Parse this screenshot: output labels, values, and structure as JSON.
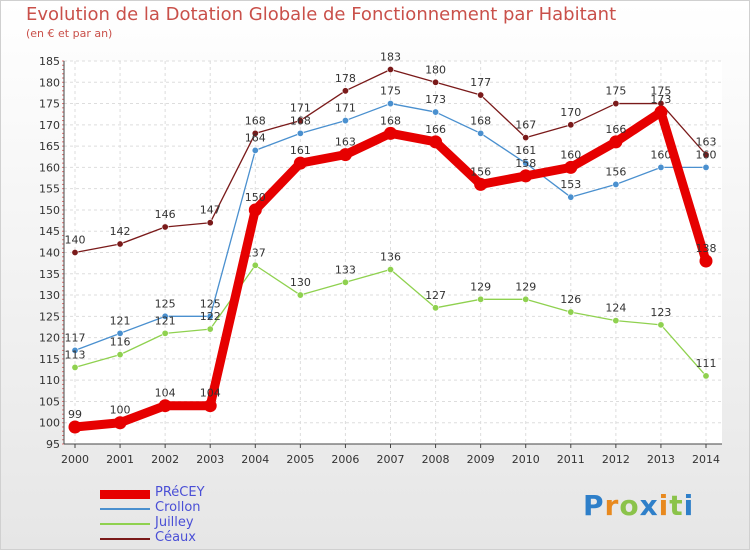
{
  "title": "Evolution de la Dotation Globale de Fonctionnement par Habitant",
  "subtitle": "(en € et par an)",
  "brand": {
    "letters": [
      "P",
      "r",
      "o",
      "x",
      "i",
      "t",
      "i"
    ],
    "colors": [
      "#2e7fc9",
      "#e8891e",
      "#8bc34a",
      "#2e7fc9",
      "#e8891e",
      "#8bc34a",
      "#2e7fc9"
    ]
  },
  "chart_data": {
    "type": "line",
    "title": "Evolution de la Dotation Globale de Fonctionnement par Habitant",
    "ylabel": "(en € et par an)",
    "xlabel": "",
    "x": [
      "2000",
      "2001",
      "2002",
      "2003",
      "2004",
      "2005",
      "2006",
      "2007",
      "2008",
      "2009",
      "2010",
      "2011",
      "2012",
      "2013",
      "2014"
    ],
    "ylim": [
      95,
      185
    ],
    "yticks": [
      95,
      100,
      105,
      110,
      115,
      120,
      125,
      130,
      135,
      140,
      145,
      150,
      155,
      160,
      165,
      170,
      175,
      180,
      185
    ],
    "grid": true,
    "legend": "bottom-left",
    "series": [
      {
        "name": "Céaux",
        "color": "#7a1a1a",
        "values": [
          140,
          142,
          146,
          147,
          168,
          171,
          178,
          183,
          180,
          177,
          167,
          170,
          175,
          175,
          163
        ]
      },
      {
        "name": "Crollon",
        "color": "#4a90cf",
        "values": [
          117,
          121,
          125,
          125,
          164,
          168,
          171,
          175,
          173,
          168,
          161,
          153,
          156,
          160,
          160
        ]
      },
      {
        "name": "Juilley",
        "color": "#8fd14f",
        "values": [
          113,
          116,
          121,
          122,
          137,
          130,
          133,
          136,
          127,
          129,
          129,
          126,
          124,
          123,
          111
        ]
      },
      {
        "name": "PRéCEY",
        "color": "#e60000",
        "values": [
          99,
          100,
          104,
          104,
          150,
          161,
          163,
          168,
          166,
          156,
          158,
          160,
          166,
          173,
          138
        ]
      }
    ],
    "legend_order": [
      "PRéCEY",
      "Crollon",
      "Juilley",
      "Céaux"
    ]
  }
}
